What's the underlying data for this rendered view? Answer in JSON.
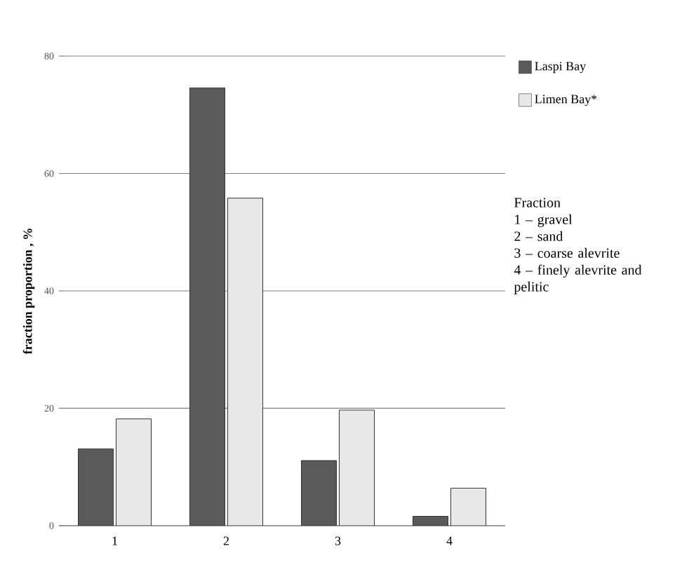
{
  "chart_data": {
    "type": "bar",
    "ylabel": "fraction proportion , %",
    "categories": [
      "1",
      "2",
      "3",
      "4"
    ],
    "series": [
      {
        "name": "Laspi Bay",
        "color": "#5a5a5a",
        "values": [
          13.1,
          74.6,
          11.1,
          1.6
        ]
      },
      {
        "name": "Limen Bay*",
        "color": "#e8e8e8",
        "values": [
          18.2,
          55.8,
          19.7,
          6.4
        ]
      }
    ],
    "ylim": [
      0,
      80
    ],
    "yticks": [
      0,
      20,
      40,
      60,
      80
    ],
    "grid": "y",
    "legend": "top right",
    "annotations": [
      "Fraction",
      "1 – gravel",
      "2 – sand",
      "3 – coarse alevrite",
      "4 – finely alevrite and pelitic"
    ]
  }
}
